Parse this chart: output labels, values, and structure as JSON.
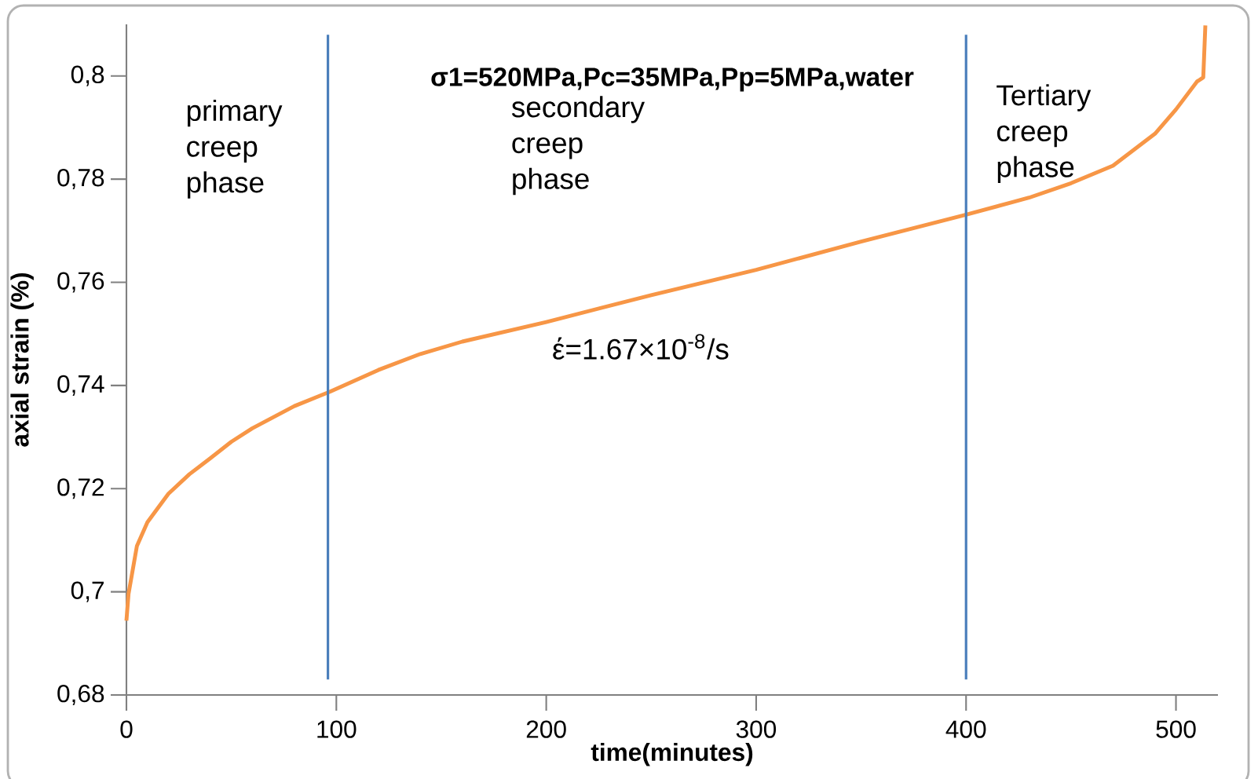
{
  "chart_data": {
    "type": "line",
    "title": "σ1=520MPa,Pc=35MPa,Pp=5MPa,water",
    "xlabel": "time(minutes)",
    "ylabel": "axial strain (%)",
    "annotations": [
      "primary creep phase",
      "secondary creep phase",
      "Tertiary creep phase",
      "έ=1.67×10$^{-8}$/s"
    ],
    "series": [
      {
        "color": "#f79646",
        "x": [
          0,
          1,
          5,
          10,
          20,
          30,
          40,
          50,
          60,
          80,
          97,
          120,
          140,
          160,
          200,
          250,
          300,
          350,
          400,
          430,
          450,
          470,
          490,
          500,
          510,
          513,
          514
        ],
        "values": [
          0.6944,
          0.6996,
          0.7089,
          0.7135,
          0.719,
          0.7228,
          0.7259,
          0.7291,
          0.7317,
          0.736,
          0.7388,
          0.743,
          0.7461,
          0.7485,
          0.7523,
          0.7575,
          0.7624,
          0.7679,
          0.7731,
          0.7764,
          0.7792,
          0.7826,
          0.7888,
          0.7935,
          0.7989,
          0.7997,
          0.8098
        ]
      }
    ],
    "ref_lines": [
      {
        "axis": "x",
        "value": 96,
        "color": "#4a7ebb"
      },
      {
        "axis": "x",
        "value": 400,
        "color": "#4a7ebb"
      }
    ],
    "xlim": [
      0,
      520
    ],
    "ylim": [
      0.68,
      0.81
    ],
    "xticks": [
      0,
      100,
      200,
      300,
      400,
      500
    ],
    "yticks": [
      {
        "value": 0.68,
        "label": "0,68"
      },
      {
        "value": 0.7,
        "label": "0,7"
      },
      {
        "value": 0.72,
        "label": "0,72"
      },
      {
        "value": 0.74,
        "label": "0,74"
      },
      {
        "value": 0.76,
        "label": "0,76"
      },
      {
        "value": 0.78,
        "label": "0,78"
      },
      {
        "value": 0.8,
        "label": "0,8"
      }
    ],
    "grid": false,
    "marker": "none",
    "line_style": "solid"
  }
}
